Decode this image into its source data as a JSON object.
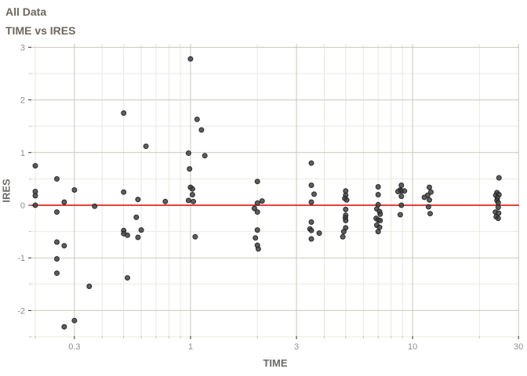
{
  "title": "All Data",
  "subtitle": "TIME vs IRES",
  "chart_data": {
    "type": "scatter",
    "title": "All Data",
    "subtitle": "TIME vs IRES",
    "xlabel": "TIME",
    "ylabel": "IRES",
    "x_scale": "log10",
    "xlim": [
      0.192,
      30.2
    ],
    "ylim": [
      -2.485,
      3.065
    ],
    "x_ticks": [
      0.3,
      1,
      3,
      10,
      30
    ],
    "x_tick_labels": [
      "0.3",
      "1",
      "3",
      "10",
      "30"
    ],
    "x_minor_ticks": [
      0.2,
      0.4,
      0.5,
      0.6,
      0.7,
      0.8,
      0.9,
      2,
      4,
      5,
      6,
      7,
      8,
      9,
      20
    ],
    "y_ticks": [
      3,
      2,
      1,
      0,
      -1,
      -2
    ],
    "y_tick_labels": [
      "3",
      "2",
      "1",
      "0",
      "-1",
      "-2"
    ],
    "y_minor_ticks": [
      2.5,
      1.5,
      0.5,
      -0.5,
      -1.5,
      -2.5
    ],
    "grid": true,
    "legend": "none",
    "ref_line_y": 0,
    "colors": {
      "point_fill": "#424242",
      "point_stroke": "#1e1e1e",
      "ref_line": "#e10000",
      "grid_major": "#c8c7be",
      "grid_minor": "#eae8e0",
      "tick_major": "#333333",
      "tick_minor": "#c2c1b8",
      "title_text": "#6d675e",
      "tick_label": "#8f8e88",
      "axis_title": "#6b6b66"
    },
    "points": [
      [
        0.2,
        0.75
      ],
      [
        0.2,
        0.26
      ],
      [
        0.2,
        0.18
      ],
      [
        0.2,
        0.0
      ],
      [
        0.25,
        0.5
      ],
      [
        0.25,
        -0.13
      ],
      [
        0.25,
        -0.7
      ],
      [
        0.25,
        -1.02
      ],
      [
        0.25,
        -1.29
      ],
      [
        0.27,
        0.06
      ],
      [
        0.27,
        -0.77
      ],
      [
        0.27,
        -2.31
      ],
      [
        0.3,
        0.29
      ],
      [
        0.3,
        -2.19
      ],
      [
        0.35,
        -1.54
      ],
      [
        0.37,
        -0.02
      ],
      [
        0.5,
        1.75
      ],
      [
        0.5,
        0.25
      ],
      [
        0.5,
        -0.48
      ],
      [
        0.5,
        -0.54
      ],
      [
        0.52,
        -0.57
      ],
      [
        0.52,
        -1.38
      ],
      [
        0.57,
        -0.23
      ],
      [
        0.58,
        0.11
      ],
      [
        0.58,
        -0.61
      ],
      [
        0.6,
        -0.47
      ],
      [
        0.63,
        1.12
      ],
      [
        0.77,
        0.07
      ],
      [
        1.0,
        2.78
      ],
      [
        0.98,
        0.99
      ],
      [
        0.99,
        0.69
      ],
      [
        1.0,
        0.34
      ],
      [
        1.02,
        0.31
      ],
      [
        1.02,
        0.2
      ],
      [
        0.98,
        0.09
      ],
      [
        1.03,
        0.07
      ],
      [
        1.05,
        -0.6
      ],
      [
        1.07,
        1.63
      ],
      [
        1.12,
        1.43
      ],
      [
        1.16,
        0.94
      ],
      [
        2.0,
        0.45
      ],
      [
        2.1,
        0.08
      ],
      [
        2.0,
        0.04
      ],
      [
        1.94,
        -0.06
      ],
      [
        2.0,
        -0.13
      ],
      [
        2.0,
        -0.47
      ],
      [
        1.96,
        -0.62
      ],
      [
        2.0,
        -0.76
      ],
      [
        2.02,
        -0.83
      ],
      [
        3.5,
        0.8
      ],
      [
        3.5,
        0.38
      ],
      [
        3.6,
        0.21
      ],
      [
        3.5,
        0.06
      ],
      [
        3.5,
        -0.32
      ],
      [
        3.45,
        -0.45
      ],
      [
        3.5,
        -0.48
      ],
      [
        3.8,
        -0.53
      ],
      [
        3.5,
        -0.64
      ],
      [
        5.0,
        0.27
      ],
      [
        5.0,
        0.19
      ],
      [
        4.95,
        0.13
      ],
      [
        5.05,
        0.1
      ],
      [
        5.0,
        -0.08
      ],
      [
        5.0,
        -0.19
      ],
      [
        4.98,
        -0.24
      ],
      [
        5.0,
        -0.29
      ],
      [
        5.0,
        -0.43
      ],
      [
        4.9,
        -0.5
      ],
      [
        4.85,
        -0.6
      ],
      [
        7.0,
        0.35
      ],
      [
        7.0,
        0.2
      ],
      [
        7.0,
        0.01
      ],
      [
        6.9,
        -0.07
      ],
      [
        7.1,
        -0.12
      ],
      [
        7.15,
        -0.17
      ],
      [
        6.85,
        -0.25
      ],
      [
        7.0,
        -0.28
      ],
      [
        7.15,
        -0.29
      ],
      [
        6.9,
        -0.38
      ],
      [
        7.1,
        -0.42
      ],
      [
        7.0,
        -0.5
      ],
      [
        8.9,
        0.38
      ],
      [
        8.8,
        0.29
      ],
      [
        8.9,
        0.27
      ],
      [
        9.2,
        0.27
      ],
      [
        8.6,
        0.26
      ],
      [
        8.9,
        0.17
      ],
      [
        8.9,
        0.0
      ],
      [
        8.8,
        -0.18
      ],
      [
        11.9,
        0.34
      ],
      [
        12.1,
        0.25
      ],
      [
        11.7,
        0.19
      ],
      [
        11.3,
        0.15
      ],
      [
        11.9,
        0.1
      ],
      [
        11.8,
        -0.03
      ],
      [
        12.0,
        -0.16
      ],
      [
        24.5,
        0.52
      ],
      [
        24.0,
        0.24
      ],
      [
        23.7,
        0.19
      ],
      [
        24.5,
        0.2
      ],
      [
        24.1,
        0.14
      ],
      [
        24.0,
        0.09
      ],
      [
        24.3,
        0.05
      ],
      [
        24.3,
        -0.04
      ],
      [
        23.6,
        -0.13
      ],
      [
        24.4,
        -0.15
      ],
      [
        23.8,
        -0.22
      ],
      [
        24.3,
        -0.25
      ]
    ]
  }
}
